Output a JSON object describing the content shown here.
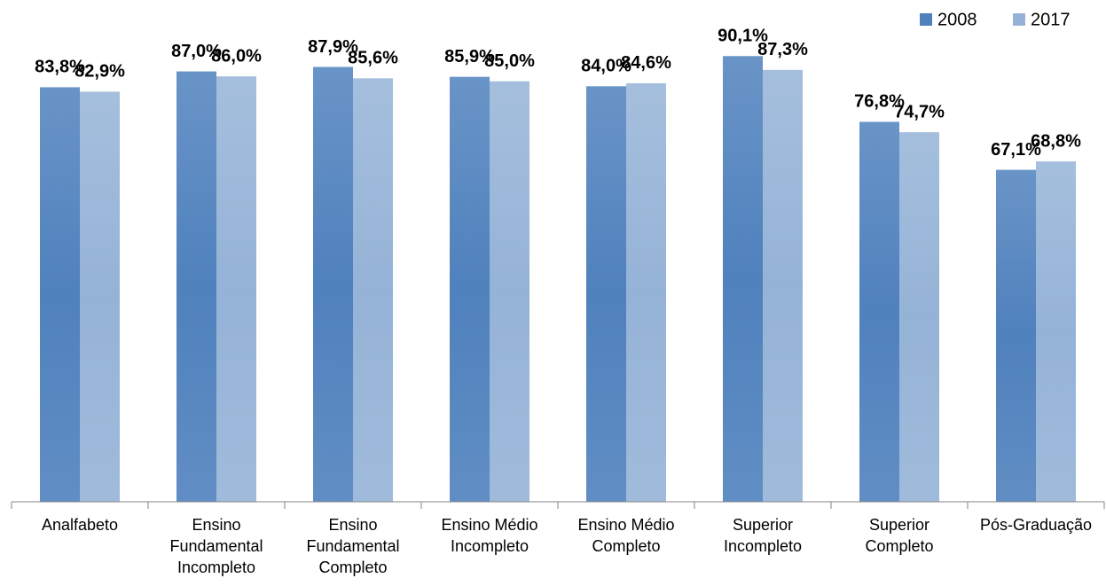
{
  "chart_data": {
    "type": "bar",
    "categories": [
      "Analfabeto",
      "Ensino Fundamental Incompleto",
      "Ensino Fundamental Completo",
      "Ensino Médio Incompleto",
      "Ensino Médio Completo",
      "Superior Incompleto",
      "Superior Completo",
      "Pós-Graduação"
    ],
    "series": [
      {
        "name": "2008",
        "color": "#4f81bd",
        "values": [
          83.8,
          87.0,
          87.9,
          85.9,
          84.0,
          90.1,
          76.8,
          67.1
        ],
        "value_labels": [
          "83,8%",
          "87,0%",
          "87,9%",
          "85,9%",
          "84,0%",
          "90,1%",
          "76,8%",
          "67,1%"
        ]
      },
      {
        "name": "2017",
        "color": "#95b3d7",
        "values": [
          82.9,
          86.0,
          85.6,
          85.0,
          84.6,
          87.3,
          74.7,
          68.8
        ],
        "value_labels": [
          "82,9%",
          "86,0%",
          "85,6%",
          "85,0%",
          "84,6%",
          "87,3%",
          "74,7%",
          "68,8%"
        ]
      }
    ],
    "ylim": [
      0,
      100
    ],
    "legend": "top-right"
  }
}
